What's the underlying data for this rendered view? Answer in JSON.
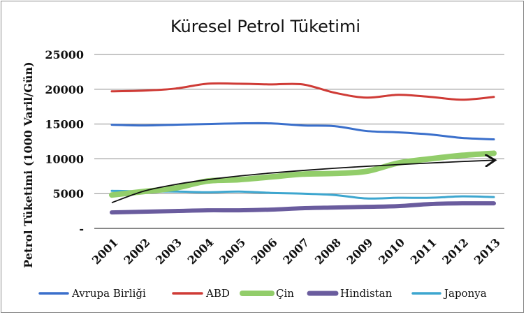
{
  "chart_data": {
    "type": "line",
    "title": "Küresel Petrol Tüketimi",
    "ylabel": "Petrol Tüketimi (1000 Varil/Gün)",
    "xlabel": "",
    "categories": [
      "2001",
      "2002",
      "2003",
      "2004",
      "2005",
      "2006",
      "2007",
      "2008",
      "2009",
      "2010",
      "2011",
      "2012",
      "2013"
    ],
    "y_ticks": [
      "-",
      "5000",
      "10000",
      "15000",
      "20000",
      "25000"
    ],
    "ylim": [
      0,
      25000
    ],
    "grid": "horizontal",
    "legend_position": "bottom",
    "series": [
      {
        "name": "Avrupa Birliği",
        "color": "#3a6fcb",
        "values": [
          14900,
          14800,
          14900,
          15000,
          15100,
          15100,
          14800,
          14700,
          14000,
          13800,
          13500,
          13000,
          12800
        ]
      },
      {
        "name": "ABD",
        "color": "#cf3b36",
        "values": [
          19700,
          19800,
          20100,
          20800,
          20800,
          20700,
          20700,
          19500,
          18800,
          19200,
          18900,
          18500,
          18900
        ]
      },
      {
        "name": "Çin",
        "color": "#92cd6a",
        "values": [
          4800,
          5300,
          5800,
          6800,
          7000,
          7400,
          7800,
          7900,
          8200,
          9400,
          10000,
          10500,
          10800
        ]
      },
      {
        "name": "Hindistan",
        "color": "#6a5c9e",
        "values": [
          2300,
          2400,
          2500,
          2600,
          2600,
          2700,
          2900,
          3000,
          3100,
          3200,
          3500,
          3600,
          3600
        ]
      },
      {
        "name": "Japonya",
        "color": "#3da6cf",
        "values": [
          5400,
          5300,
          5300,
          5200,
          5300,
          5100,
          5000,
          4800,
          4300,
          4400,
          4400,
          4600,
          4500
        ]
      }
    ],
    "trendline": {
      "color": "#111111",
      "start": [
        2001,
        3700
      ],
      "end": [
        2013,
        9800
      ],
      "shape": "logarithmic"
    }
  }
}
